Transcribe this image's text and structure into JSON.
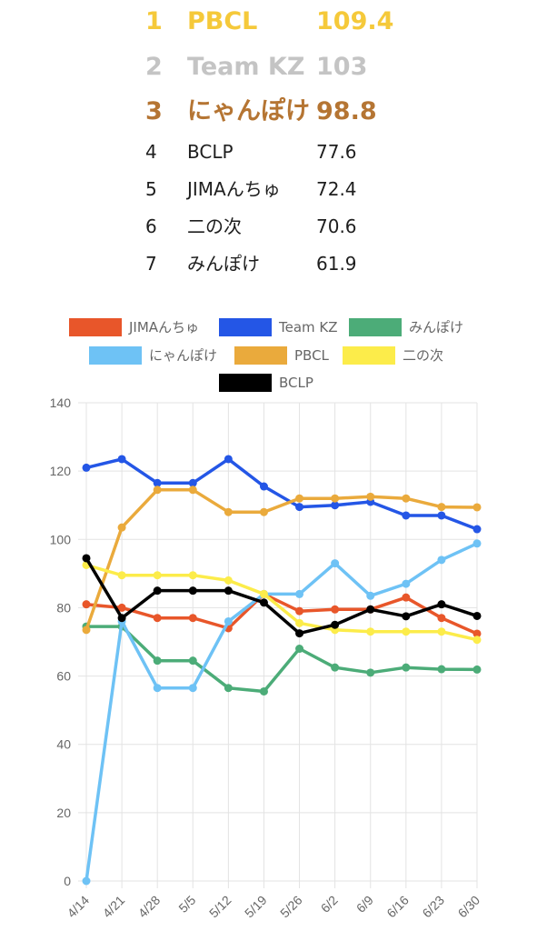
{
  "ranking": [
    {
      "rank": "1",
      "name": "PBCL",
      "score": "109.4",
      "color": "#F5C93A"
    },
    {
      "rank": "2",
      "name": "Team KZ",
      "score": "103",
      "color": "#C4C4C4"
    },
    {
      "rank": "3",
      "name": "にゃんぽけ",
      "score": "98.8",
      "color": "#B57533"
    },
    {
      "rank": "4",
      "name": "BCLP",
      "score": "77.6",
      "color": "#1E1E1E"
    },
    {
      "rank": "5",
      "name": "JIMAんちゅ",
      "score": "72.4",
      "color": "#1E1E1E"
    },
    {
      "rank": "6",
      "name": "二の次",
      "score": "70.6",
      "color": "#1E1E1E"
    },
    {
      "rank": "7",
      "name": "みんぽけ",
      "score": "61.9",
      "color": "#1E1E1E"
    }
  ],
  "chart_data": {
    "type": "line",
    "categories": [
      "4/14",
      "4/21",
      "4/28",
      "5/5",
      "5/12",
      "5/19",
      "5/26",
      "6/2",
      "6/9",
      "6/16",
      "6/23",
      "6/30"
    ],
    "ylim": [
      0,
      140
    ],
    "yticks": [
      "0",
      "20",
      "40",
      "60",
      "80",
      "100",
      "120",
      "140"
    ],
    "grid": true,
    "legend_position": "top",
    "series": [
      {
        "name": "JIMAんちゅ",
        "color": "#E8562A",
        "values": [
          81,
          80,
          77,
          77,
          74,
          84,
          79,
          79.5,
          79.5,
          83,
          77,
          72.4
        ]
      },
      {
        "name": "Team KZ",
        "color": "#2456E6",
        "values": [
          121,
          123.5,
          116.5,
          116.5,
          123.5,
          115.5,
          109.5,
          110,
          111,
          107,
          107,
          103
        ]
      },
      {
        "name": "みんぽけ",
        "color": "#4CAC78",
        "values": [
          74.5,
          74.5,
          64.5,
          64.5,
          56.5,
          55.5,
          68,
          62.5,
          61,
          62.5,
          62,
          61.9
        ]
      },
      {
        "name": "にゃんぽけ",
        "color": "#6EC2F5",
        "values": [
          0,
          76,
          56.5,
          56.5,
          76,
          84,
          84,
          93,
          83.5,
          87,
          94,
          98.8
        ]
      },
      {
        "name": "PBCL",
        "color": "#EAAA3C",
        "values": [
          73.5,
          103.5,
          114.5,
          114.5,
          108,
          108,
          112,
          112,
          112.5,
          112,
          109.5,
          109.4
        ]
      },
      {
        "name": "二の次",
        "color": "#FCEC4A",
        "values": [
          92.5,
          89.5,
          89.5,
          89.5,
          88,
          84,
          75.5,
          73.5,
          73,
          73,
          73,
          70.6
        ]
      },
      {
        "name": "BCLP",
        "color": "#000000",
        "values": [
          94.5,
          77,
          85,
          85,
          85,
          81.5,
          72.5,
          75,
          79.5,
          77.5,
          81,
          77.6
        ]
      }
    ]
  }
}
